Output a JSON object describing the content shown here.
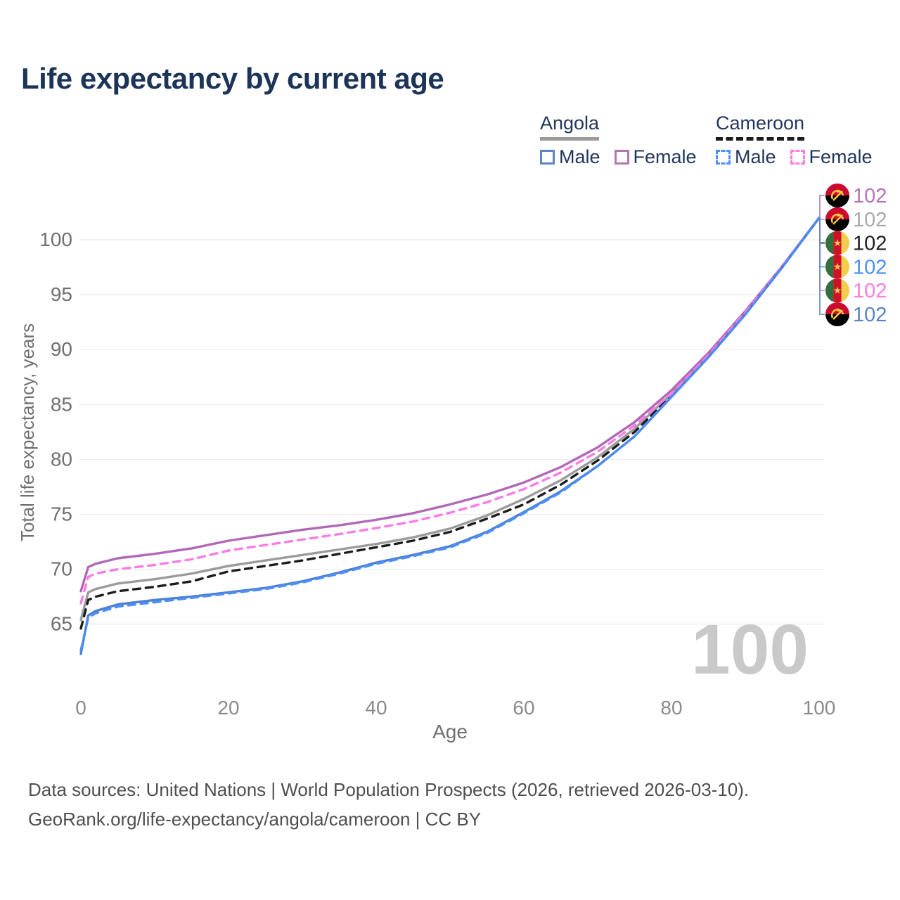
{
  "title": "Life expectancy by current age",
  "legend": {
    "groups": [
      {
        "name": "Angola",
        "line_style": "solid",
        "underline_color": "#9b9b9b",
        "items": [
          {
            "label": "Male",
            "color": "#5b84c0",
            "dashed": false
          },
          {
            "label": "Female",
            "color": "#b277ae",
            "dashed": false
          }
        ]
      },
      {
        "name": "Cameroon",
        "line_style": "dashed",
        "underline_color": "#1c1c1c",
        "items": [
          {
            "label": "Male",
            "color": "#4a8ffb",
            "dashed": true
          },
          {
            "label": "Female",
            "color": "#fb7ce4",
            "dashed": true
          }
        ]
      }
    ]
  },
  "axes": {
    "y_label": "Total life expectancy, years",
    "x_label": "Age",
    "y_ticks": [
      65,
      70,
      75,
      80,
      85,
      90,
      95,
      100
    ],
    "x_ticks": [
      0,
      20,
      40,
      60,
      80,
      100
    ]
  },
  "watermark": "100",
  "chart_data": {
    "type": "line",
    "title": "Life expectancy by current age",
    "xlabel": "Age",
    "ylabel": "Total life expectancy, years",
    "xlim": [
      0,
      100
    ],
    "ylim": [
      62,
      103.5
    ],
    "grid": "horizontal",
    "legend_position": "top-right",
    "x": [
      0,
      1,
      2,
      5,
      10,
      15,
      20,
      25,
      30,
      35,
      40,
      45,
      50,
      55,
      60,
      65,
      70,
      75,
      80,
      85,
      90,
      95,
      100
    ],
    "series": [
      {
        "name": "Angola",
        "sex": "both",
        "color": "#9b9b9b",
        "line": "solid",
        "values": [
          65.4,
          67.9,
          68.2,
          68.7,
          69.1,
          69.6,
          70.3,
          70.8,
          71.3,
          71.8,
          72.3,
          72.9,
          73.7,
          74.9,
          76.4,
          78.1,
          80.2,
          82.8,
          86.0,
          89.5,
          93.3,
          97.5,
          102
        ]
      },
      {
        "name": "Cameroon",
        "sex": "both",
        "color": "#1c1c1c",
        "line": "dashed",
        "values": [
          64.6,
          67.2,
          67.5,
          68.0,
          68.4,
          68.9,
          69.8,
          70.3,
          70.8,
          71.4,
          72.0,
          72.6,
          73.4,
          74.6,
          75.9,
          77.7,
          79.9,
          82.5,
          85.8,
          89.4,
          93.3,
          97.5,
          102
        ]
      },
      {
        "name": "Angola Female",
        "sex": "female",
        "color": "#b168b8",
        "line": "solid",
        "values": [
          68.0,
          70.2,
          70.5,
          71.0,
          71.4,
          71.9,
          72.6,
          73.1,
          73.6,
          74.0,
          74.5,
          75.1,
          75.9,
          76.8,
          77.9,
          79.3,
          81.1,
          83.4,
          86.3,
          89.7,
          93.5,
          97.6,
          102
        ]
      },
      {
        "name": "Cameroon Female",
        "sex": "female",
        "color": "#fb7ce4",
        "line": "dashed",
        "values": [
          66.9,
          69.3,
          69.6,
          70.0,
          70.4,
          70.9,
          71.7,
          72.2,
          72.7,
          73.2,
          73.75,
          74.35,
          75.15,
          76.1,
          77.3,
          78.8,
          80.7,
          83.1,
          86.0,
          89.5,
          93.4,
          97.6,
          102
        ]
      },
      {
        "name": "Angola Male",
        "sex": "male",
        "color": "#4f7fd0",
        "line": "solid",
        "values": [
          62.3,
          65.8,
          66.2,
          66.8,
          67.2,
          67.5,
          67.9,
          68.3,
          68.9,
          69.7,
          70.6,
          71.3,
          72.1,
          73.4,
          75.2,
          77.1,
          79.4,
          82.1,
          85.7,
          89.3,
          93.2,
          97.5,
          102
        ]
      },
      {
        "name": "Cameroon Male",
        "sex": "male",
        "color": "#4a8ffb",
        "line": "dashed",
        "values": [
          62.6,
          65.6,
          66.0,
          66.6,
          67.0,
          67.4,
          67.8,
          68.2,
          68.8,
          69.6,
          70.5,
          71.2,
          72.0,
          73.3,
          75.1,
          77.0,
          79.4,
          82.1,
          85.7,
          89.3,
          93.2,
          97.5,
          102
        ]
      }
    ],
    "end_labels": [
      {
        "series": "Angola Female",
        "flag": "angola",
        "value": "102",
        "color": "#b573b8"
      },
      {
        "series": "Angola",
        "flag": "angola",
        "value": "102",
        "color": "#a9a9a9"
      },
      {
        "series": "Cameroon",
        "flag": "cameroon",
        "value": "102",
        "color": "#1e1e1e"
      },
      {
        "series": "Cameroon Male",
        "flag": "cameroon",
        "value": "102",
        "color": "#4a8ffb"
      },
      {
        "series": "Cameroon Female",
        "flag": "cameroon",
        "value": "102",
        "color": "#fb7ce4"
      },
      {
        "series": "Angola Male",
        "flag": "angola",
        "value": "102",
        "color": "#5b84c4"
      }
    ]
  },
  "footer": {
    "line1": "Data sources: United Nations | World Population Prospects (2026, retrieved 2026-03-10).",
    "line2": "GeoRank.org/life-expectancy/angola/cameroon | CC BY"
  }
}
